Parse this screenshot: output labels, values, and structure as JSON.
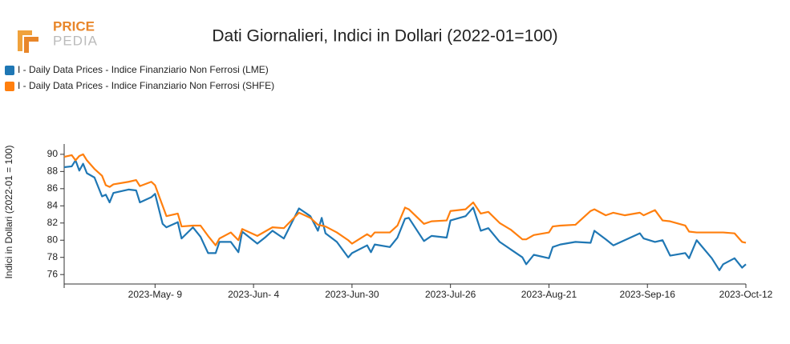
{
  "logo": {
    "line1": "PRICE",
    "line2": "PEDIA"
  },
  "chart_data": {
    "type": "line",
    "title": "Dati Giornalieri, Indici in Dollari (2022-01=100)",
    "y_label": "Indici in Dollari (2022-01 = 100)",
    "legend": "top-left",
    "grid": false,
    "x": [
      "2023-04-15",
      "2023-04-17",
      "2023-04-18",
      "2023-04-19",
      "2023-04-20",
      "2023-04-21",
      "2023-04-23",
      "2023-04-25",
      "2023-04-26",
      "2023-04-27",
      "2023-04-28",
      "2023-05-02",
      "2023-05-04",
      "2023-05-05",
      "2023-05-08",
      "2023-05-09",
      "2023-05-11",
      "2023-05-12",
      "2023-05-15",
      "2023-05-16",
      "2023-05-19",
      "2023-05-21",
      "2023-05-23",
      "2023-05-25",
      "2023-05-26",
      "2023-05-29",
      "2023-05-31",
      "2023-06-01",
      "2023-06-05",
      "2023-06-07",
      "2023-06-09",
      "2023-06-12",
      "2023-06-16",
      "2023-06-19",
      "2023-06-21",
      "2023-06-22",
      "2023-06-23",
      "2023-06-26",
      "2023-06-29",
      "2023-06-30",
      "2023-07-04",
      "2023-07-05",
      "2023-07-06",
      "2023-07-10",
      "2023-07-12",
      "2023-07-14",
      "2023-07-15",
      "2023-07-19",
      "2023-07-21",
      "2023-07-25",
      "2023-07-26",
      "2023-07-30",
      "2023-08-01",
      "2023-08-03",
      "2023-08-05",
      "2023-08-08",
      "2023-08-11",
      "2023-08-14",
      "2023-08-15",
      "2023-08-17",
      "2023-08-21",
      "2023-08-22",
      "2023-08-24",
      "2023-08-28",
      "2023-09-01",
      "2023-09-02",
      "2023-09-05",
      "2023-09-07",
      "2023-09-10",
      "2023-09-14",
      "2023-09-15",
      "2023-09-18",
      "2023-09-20",
      "2023-09-22",
      "2023-09-26",
      "2023-09-27",
      "2023-09-29",
      "2023-10-03",
      "2023-10-05",
      "2023-10-06",
      "2023-10-09",
      "2023-10-11",
      "2023-10-12"
    ],
    "series": [
      {
        "name": "I - Daily Data Prices - Indice Finanziario Non Ferrosi (LME)",
        "color": "#1f77b4",
        "values": [
          88.5,
          88.6,
          89.3,
          88.1,
          88.9,
          87.8,
          87.3,
          85.1,
          85.3,
          84.4,
          85.5,
          85.9,
          85.8,
          84.4,
          85.0,
          85.4,
          81.9,
          81.5,
          82.1,
          80.2,
          81.5,
          80.4,
          78.5,
          78.5,
          79.8,
          79.8,
          78.6,
          81.0,
          79.6,
          80.3,
          81.1,
          80.2,
          83.7,
          82.8,
          81.1,
          82.6,
          80.8,
          79.8,
          78.0,
          78.5,
          79.4,
          78.6,
          79.5,
          79.2,
          80.3,
          82.5,
          82.6,
          79.9,
          80.5,
          80.3,
          82.3,
          82.8,
          83.8,
          81.1,
          81.4,
          79.8,
          78.9,
          78.0,
          77.2,
          78.3,
          77.9,
          79.2,
          79.5,
          79.8,
          79.7,
          81.1,
          80.1,
          79.4,
          80.0,
          80.8,
          80.2,
          79.8,
          80.0,
          78.2,
          78.5,
          77.9,
          80.0,
          77.9,
          76.5,
          77.2,
          77.9,
          76.8,
          77.2
        ]
      },
      {
        "name": "I - Daily Data Prices - Indice Finanziario Non Ferrosi (SHFE)",
        "color": "#ff7f0e",
        "values": [
          89.7,
          89.9,
          89.3,
          89.8,
          90.0,
          89.3,
          88.3,
          87.5,
          86.4,
          86.2,
          86.5,
          86.8,
          87.0,
          86.3,
          86.8,
          86.4,
          84.0,
          82.8,
          83.1,
          81.6,
          81.7,
          81.7,
          80.5,
          79.4,
          80.2,
          80.9,
          80.0,
          81.3,
          80.5,
          81.0,
          81.5,
          81.4,
          83.2,
          82.6,
          81.8,
          81.7,
          81.6,
          80.9,
          80.0,
          79.6,
          80.7,
          80.4,
          80.9,
          80.9,
          81.7,
          83.8,
          83.6,
          81.9,
          82.2,
          82.3,
          83.4,
          83.6,
          84.4,
          83.1,
          83.3,
          82.0,
          81.2,
          80.1,
          80.1,
          80.6,
          80.9,
          81.6,
          81.7,
          81.8,
          83.4,
          83.6,
          82.9,
          83.2,
          82.9,
          83.2,
          82.9,
          83.5,
          82.3,
          82.2,
          81.7,
          81.0,
          80.9,
          80.9,
          80.9,
          80.9,
          80.8,
          79.8,
          79.7
        ]
      }
    ],
    "xlim": [
      "2023-04-15",
      "2023-10-12"
    ],
    "xticks": [
      {
        "value": "2023-05-09",
        "label": "2023-May- 9"
      },
      {
        "value": "2023-06-04",
        "label": "2023-Jun- 4"
      },
      {
        "value": "2023-06-30",
        "label": "2023-Jun-30"
      },
      {
        "value": "2023-07-26",
        "label": "2023-Jul-26"
      },
      {
        "value": "2023-08-21",
        "label": "2023-Aug-21"
      },
      {
        "value": "2023-09-16",
        "label": "2023-Sep-16"
      },
      {
        "value": "2023-10-12",
        "label": "2023-Oct-12"
      }
    ],
    "ylim": [
      74.9,
      91.2
    ],
    "yticks": [
      76,
      78,
      80,
      82,
      84,
      86,
      88,
      90
    ]
  }
}
